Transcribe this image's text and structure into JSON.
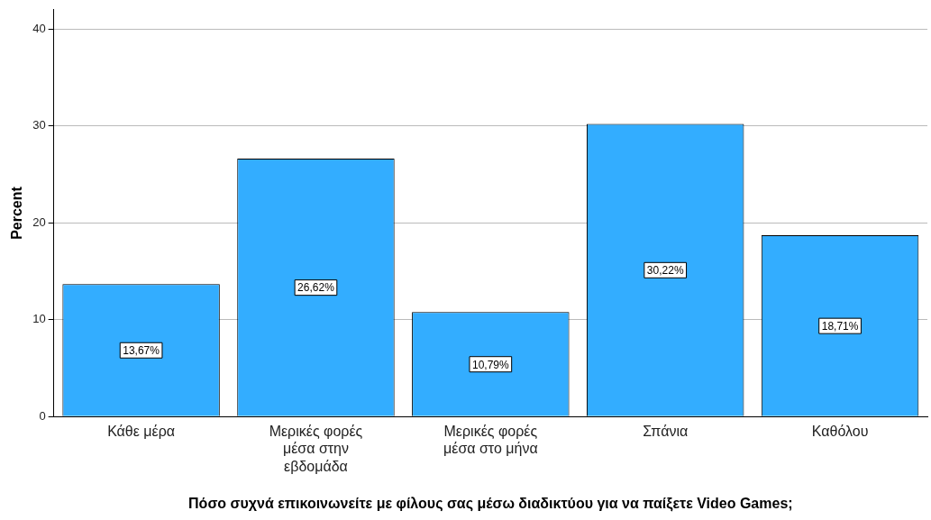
{
  "chart_data": {
    "type": "bar",
    "xlabel": "Πόσο συχνά επικοινωνείτε με φίλους σας μέσω διαδικτύου για να παίξετε Video Games;",
    "ylabel": "Percent",
    "categories": [
      "Κάθε μέρα",
      "Μερικές φορές μέσα στην εβδομάδα",
      "Μερικές φορές μέσα στο μήνα",
      "Σπάνια",
      "Καθόλου"
    ],
    "values": [
      13.67,
      26.62,
      10.79,
      30.22,
      18.71
    ],
    "value_labels": [
      "13,67%",
      "26,62%",
      "10,79%",
      "30,22%",
      "18,71%"
    ],
    "color": "#33adff",
    "ylim": [
      0,
      42
    ],
    "yticks": [
      0,
      10,
      20,
      30,
      40
    ],
    "grid": "y",
    "legend": false
  }
}
